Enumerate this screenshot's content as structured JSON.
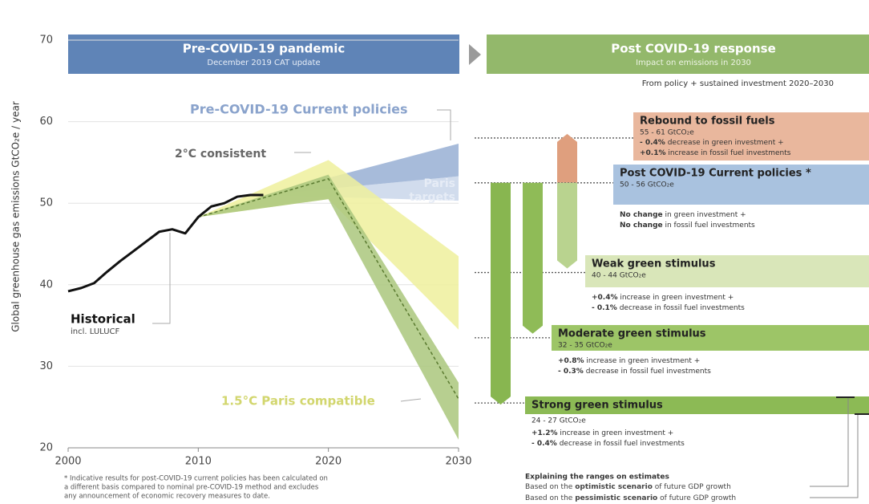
{
  "chart_data": {
    "type": "line",
    "ylabel": "Global greenhouse gas emissions GtCO₂e / year",
    "left_header": {
      "title": "Pre-COVID-19 pandemic",
      "subtitle": "December 2019 CAT update",
      "color": "#5f84b7"
    },
    "right_header": {
      "title": "Post COVID-19 response",
      "subtitle": "Impact on emissions in 2030",
      "color": "#93b86b"
    },
    "right_note": "From policy + sustained investment 2020–2030",
    "xlim": [
      2000,
      2030
    ],
    "xticks": [
      2000,
      2010,
      2020,
      2030
    ],
    "ylim": [
      20,
      70
    ],
    "yticks": [
      20,
      30,
      40,
      50,
      60,
      70
    ],
    "grid": true,
    "series": [
      {
        "name": "Historical",
        "color": "#111111",
        "x": [
          2000,
          2001,
          2002,
          2003,
          2004,
          2005,
          2006,
          2007,
          2008,
          2009,
          2010,
          2011,
          2012,
          2013,
          2014,
          2015
        ],
        "values": [
          39.2,
          39.6,
          40.2,
          41.6,
          42.9,
          44.1,
          45.3,
          46.5,
          46.8,
          46.3,
          48.3,
          49.6,
          50,
          50.8,
          51,
          51
        ]
      }
    ],
    "bands": [
      {
        "name": "Paris targets",
        "color": "#c9d6ea",
        "x": [
          2015,
          2030
        ],
        "low": [
          51,
          50.3
        ],
        "high": [
          51,
          53.3
        ]
      },
      {
        "name": "Pre-COVID-19 Current policies",
        "color": "#98afd3",
        "x": [
          2015,
          2030
        ],
        "low": [
          51,
          53.3
        ],
        "high": [
          51,
          57.3
        ]
      },
      {
        "name": "2°C consistent",
        "color": "#eef09c",
        "x": [
          2010,
          2020,
          2030
        ],
        "low": [
          48.3,
          50.5,
          34.5
        ],
        "high": [
          48.3,
          55.3,
          43.5
        ]
      },
      {
        "name": "1.5°C Paris compatible",
        "color": "#aac77c",
        "x": [
          2010,
          2020,
          2030
        ],
        "low": [
          48.3,
          50.5,
          21
        ],
        "high": [
          48.3,
          53.5,
          28
        ]
      }
    ],
    "pathway": {
      "color": "#5a7a30",
      "x": [
        2010,
        2020,
        2030
      ],
      "values": [
        48.3,
        53,
        26
      ]
    },
    "labels": {
      "historical": "Historical",
      "historical_note": "incl. LULUCF",
      "paris_1": "Paris",
      "paris_2": "targets"
    },
    "scenarios": [
      {
        "title": "Rebound to fossil fuels",
        "range": "55 - 61  GtCO₂e",
        "color": "#e9b79d",
        "level": 58,
        "bar": [
          52.5,
          58.5
        ],
        "bar_color": "#df9f7e",
        "lines": [
          [
            "- 0.4%",
            " decrease in green investment +"
          ],
          [
            "+0.1%",
            " increase in fossil fuel investments"
          ]
        ]
      },
      {
        "title": "Post COVID-19 Current policies *",
        "range": "50 - 56  GtCO₂e",
        "color": "#a9c2df",
        "level": 52.5,
        "lines": [
          [
            "No change",
            " in green investment +"
          ],
          [
            "No change",
            " in fossil fuel investments"
          ]
        ]
      },
      {
        "title": "Weak green stimulus",
        "range": "40 - 44  GtCO₂e",
        "color": "#d9e6b9",
        "level": 41.5,
        "bar": [
          52.5,
          42
        ],
        "bar_color": "#b9d38f",
        "lines": [
          [
            "+0.4%",
            " increase in green investment +"
          ],
          [
            "- 0.1%",
            " decrease in fossil fuel investments"
          ]
        ]
      },
      {
        "title": "Moderate green stimulus",
        "range": "32 - 35  GtCO₂e",
        "color": "#9dc567",
        "level": 33.5,
        "bar": [
          52.5,
          34
        ],
        "bar_color": "#8fbb57",
        "lines": [
          [
            "+0.8%",
            " increase in green investment +"
          ],
          [
            "- 0.3%",
            " decrease in fossil fuel investments"
          ]
        ]
      },
      {
        "title": "Strong green stimulus",
        "range": "24 - 27  GtCO₂e",
        "color": "#8cba55",
        "level": 25.5,
        "bar": [
          52.5,
          25.3
        ],
        "bar_color": "#88b650",
        "lines": [
          [
            "+1.2%",
            " increase in green investment +"
          ],
          [
            "- 0.4%",
            " decrease in fossil fuel investments"
          ]
        ]
      }
    ],
    "footnote": [
      "*  Indicative results for post-COVID-19 current policies has been calculated on",
      "a different basis compared to nominal pre-COVID-19 method and excludes",
      "any announcement of economic recovery measures to date."
    ],
    "ranges_legend": {
      "title": "Explaining the ranges on estimates",
      "lines": [
        [
          "Based on the ",
          "optimistic scenario",
          " of future GDP growth"
        ],
        [
          "Based on the ",
          "pessimistic scenario",
          " of future GDP growth"
        ]
      ]
    }
  }
}
